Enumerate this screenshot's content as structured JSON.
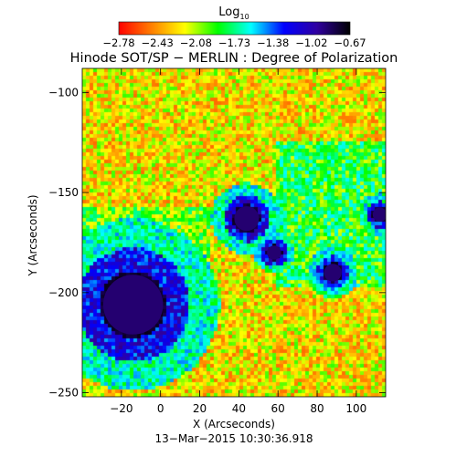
{
  "colorbar": {
    "label_main": "Log",
    "label_sub": "10",
    "ticks": [
      "−2.78",
      "−2.43",
      "−2.08",
      "−1.73",
      "−1.38",
      "−1.02",
      "−0.67"
    ]
  },
  "chart_data": {
    "type": "heatmap",
    "title": "Hinode SOT/SP − MERLIN : Degree of Polarization",
    "xlabel": "X (Arcseconds)",
    "ylabel": "Y (Arcseconds)",
    "subtitle": "13−Mar−2015 10:30:36.918",
    "xlim": [
      -40,
      115
    ],
    "ylim": [
      -252,
      -88
    ],
    "xticks": [
      -20,
      0,
      20,
      40,
      60,
      80,
      100
    ],
    "yticks": [
      -100,
      -150,
      -200,
      -250
    ],
    "xtick_labels": [
      "−20",
      "0",
      "20",
      "40",
      "60",
      "80",
      "100"
    ],
    "ytick_labels": [
      "−100",
      "−150",
      "−200",
      "−250"
    ],
    "colorscale": {
      "min": -2.78,
      "max": -0.67,
      "stops": [
        "#ff0000",
        "#ff8000",
        "#ffff00",
        "#00ff00",
        "#00ffff",
        "#0000ff",
        "#3000a0",
        "#000000"
      ]
    },
    "features": [
      {
        "name": "sunspot",
        "x": -14,
        "y": -206,
        "r": 17
      },
      {
        "name": "pore",
        "x": 44,
        "y": -163,
        "r": 7
      },
      {
        "name": "pore",
        "x": 58,
        "y": -180,
        "r": 4
      },
      {
        "name": "pore",
        "x": 88,
        "y": -190,
        "r": 5
      },
      {
        "name": "pore",
        "x": 112,
        "y": -161,
        "r": 4
      }
    ]
  }
}
